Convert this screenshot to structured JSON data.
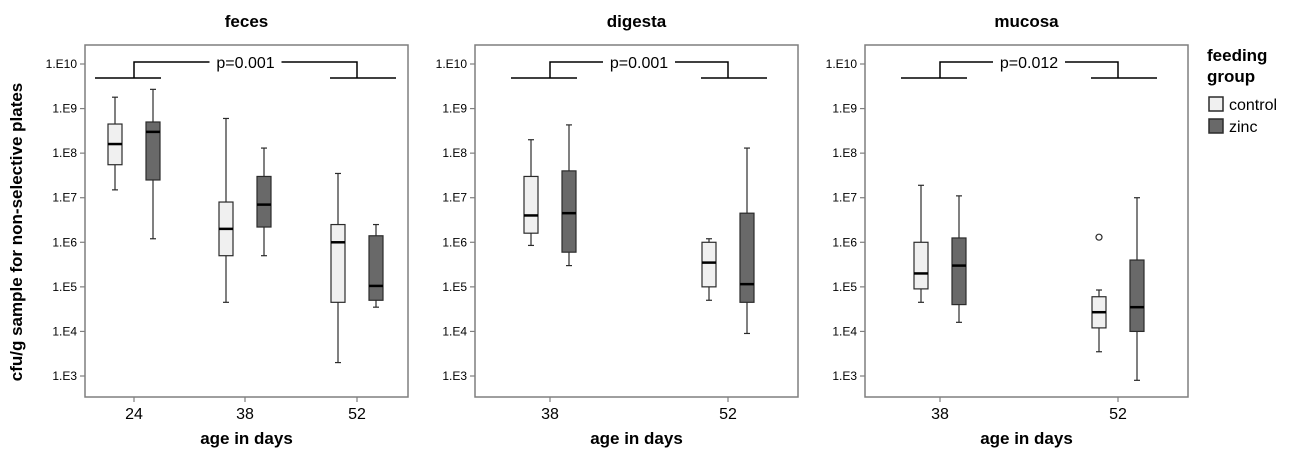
{
  "colors": {
    "control": "#f0f0f0",
    "zinc": "#696969",
    "stroke": "#2b2b2b",
    "frame": "#7f7f7f"
  },
  "y_axis_label": "cfu/g sample for non-selective plates",
  "legend": {
    "title_line1": "feeding",
    "title_line2": "group",
    "items": [
      {
        "label": "control",
        "color": "#f0f0f0"
      },
      {
        "label": "zinc",
        "color": "#696969"
      }
    ]
  },
  "chart_data": [
    {
      "type": "box",
      "title": "feces",
      "xlabel": "age in days",
      "ylabel": "cfu/g sample for non-selective plates",
      "yscale": "log",
      "y_ticks": [
        "1.E3",
        "1.E4",
        "1.E5",
        "1.E6",
        "1.E7",
        "1.E8",
        "1.E9",
        "1.E10"
      ],
      "categories": [
        "24",
        "38",
        "52"
      ],
      "annotation": "p=0.001",
      "series": [
        {
          "name": "control",
          "boxes": [
            {
              "q": "24",
              "min": 15000000.0,
              "q1": 55000000.0,
              "median": 160000000.0,
              "q3": 450000000.0,
              "max": 1800000000.0,
              "outliers": []
            },
            {
              "q": "38",
              "min": 45000.0,
              "q1": 500000.0,
              "median": 2000000.0,
              "q3": 8000000.0,
              "max": 600000000.0,
              "outliers": []
            },
            {
              "q": "52",
              "min": 2000.0,
              "q1": 45000.0,
              "median": 1000000.0,
              "q3": 2500000.0,
              "max": 35000000.0,
              "outliers": []
            }
          ]
        },
        {
          "name": "zinc",
          "boxes": [
            {
              "q": "24",
              "min": 1200000.0,
              "q1": 25000000.0,
              "median": 300000000.0,
              "q3": 500000000.0,
              "max": 2700000000.0,
              "outliers": []
            },
            {
              "q": "38",
              "min": 500000.0,
              "q1": 2200000.0,
              "median": 7000000.0,
              "q3": 30000000.0,
              "max": 130000000.0,
              "outliers": []
            },
            {
              "q": "52",
              "min": 35000.0,
              "q1": 50000.0,
              "median": 105000.0,
              "q3": 1400000.0,
              "max": 2500000.0,
              "outliers": []
            }
          ]
        }
      ]
    },
    {
      "type": "box",
      "title": "digesta",
      "xlabel": "age in days",
      "yscale": "log",
      "y_ticks": [
        "1.E3",
        "1.E4",
        "1.E5",
        "1.E6",
        "1.E7",
        "1.E8",
        "1.E9",
        "1.E10"
      ],
      "categories": [
        "38",
        "52"
      ],
      "annotation": "p=0.001",
      "series": [
        {
          "name": "control",
          "boxes": [
            {
              "q": "38",
              "min": 850000.0,
              "q1": 1600000.0,
              "median": 4000000.0,
              "q3": 30000000.0,
              "max": 200000000.0,
              "outliers": []
            },
            {
              "q": "52",
              "min": 50000.0,
              "q1": 100000.0,
              "median": 350000.0,
              "q3": 1000000.0,
              "max": 1200000.0,
              "outliers": []
            }
          ]
        },
        {
          "name": "zinc",
          "boxes": [
            {
              "q": "38",
              "min": 300000.0,
              "q1": 600000.0,
              "median": 4500000.0,
              "q3": 40000000.0,
              "max": 430000000.0,
              "outliers": []
            },
            {
              "q": "52",
              "min": 9000.0,
              "q1": 45000.0,
              "median": 115000.0,
              "q3": 4500000.0,
              "max": 130000000.0,
              "outliers": []
            }
          ]
        }
      ]
    },
    {
      "type": "box",
      "title": "mucosa",
      "xlabel": "age in days",
      "yscale": "log",
      "y_ticks": [
        "1.E3",
        "1.E4",
        "1.E5",
        "1.E6",
        "1.E7",
        "1.E8",
        "1.E9",
        "1.E10"
      ],
      "categories": [
        "38",
        "52"
      ],
      "annotation": "p=0.012",
      "series": [
        {
          "name": "control",
          "boxes": [
            {
              "q": "38",
              "min": 45000.0,
              "q1": 90000.0,
              "median": 200000.0,
              "q3": 1000000.0,
              "max": 19000000.0,
              "outliers": []
            },
            {
              "q": "52",
              "min": 3500.0,
              "q1": 12000.0,
              "median": 27000.0,
              "q3": 60000.0,
              "max": 85000.0,
              "outliers": [
                1300000.0
              ]
            }
          ]
        },
        {
          "name": "zinc",
          "boxes": [
            {
              "q": "38",
              "min": 16000.0,
              "q1": 40000.0,
              "median": 300000.0,
              "q3": 1250000.0,
              "max": 11000000.0,
              "outliers": []
            },
            {
              "q": "52",
              "min": 800,
              "q1": 10000.0,
              "median": 35000.0,
              "q3": 400000.0,
              "max": 10000000.0,
              "outliers": []
            }
          ]
        }
      ]
    }
  ]
}
